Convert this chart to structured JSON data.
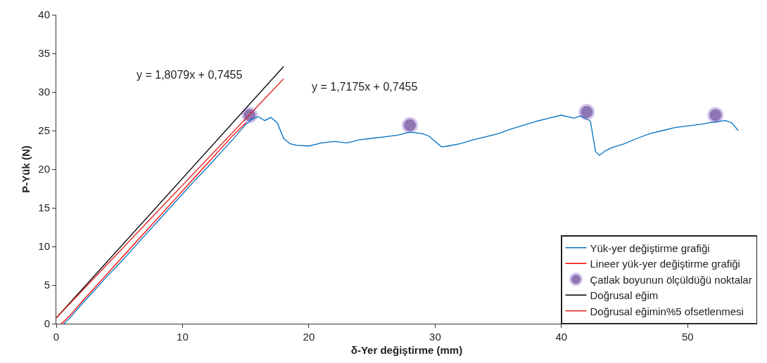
{
  "chart_data": {
    "type": "line",
    "xlabel": "δ-Yer değiştirme (mm)",
    "ylabel": "P-Yük (N)",
    "xlim": [
      0,
      55.5
    ],
    "xticks": [
      0,
      10,
      20,
      30,
      40,
      50
    ],
    "ylim": [
      0,
      40
    ],
    "yticks": [
      0,
      5,
      10,
      15,
      20,
      25,
      30,
      35,
      40
    ],
    "grid": false,
    "legend": "bottom right",
    "series": [
      {
        "name": "Yük-yer değiştirme grafiği",
        "color": "#0070c0",
        "x": [
          0.6,
          1,
          2,
          3,
          4,
          5,
          6,
          7,
          8,
          9,
          10,
          11,
          12,
          13,
          14,
          15,
          15.5,
          16,
          16.5,
          17,
          17.5,
          18,
          18.5,
          19,
          20,
          21,
          22,
          23,
          24,
          25,
          26,
          27,
          28,
          29,
          29.5,
          30,
          30.5,
          31,
          32,
          33,
          34,
          35,
          36,
          37,
          38,
          39,
          40,
          41,
          41.5,
          42,
          42.3,
          42.7,
          43,
          43.5,
          44,
          45,
          46,
          47,
          48,
          49,
          50,
          51,
          52,
          53,
          53.5,
          54
        ],
        "values": [
          0,
          0.6,
          2.5,
          4.3,
          6.1,
          7.8,
          9.6,
          11.4,
          13.2,
          15,
          16.8,
          18.6,
          20.3,
          22.1,
          23.9,
          25.8,
          26.5,
          26.8,
          26.3,
          26.7,
          26,
          24,
          23.3,
          23.1,
          23,
          23.4,
          23.6,
          23.4,
          23.8,
          24,
          24.2,
          24.4,
          24.8,
          24.6,
          24.3,
          23.6,
          22.9,
          23,
          23.3,
          23.8,
          24.2,
          24.6,
          25.2,
          25.7,
          26.2,
          26.6,
          27,
          26.6,
          26.9,
          26.5,
          26.2,
          22.3,
          21.8,
          22.4,
          22.8,
          23.3,
          24,
          24.6,
          25,
          25.4,
          25.6,
          25.8,
          26.1,
          26.3,
          26,
          25
        ]
      },
      {
        "name": "Lineer yük-yer değiştirme grafiği",
        "color": "#ff0000",
        "x": [
          0.4,
          1,
          2,
          3,
          4,
          5,
          6,
          7,
          8,
          9,
          10,
          11,
          12,
          13,
          14,
          15
        ],
        "values": [
          0,
          0.9,
          2.8,
          4.6,
          6.4,
          8.2,
          10,
          11.8,
          13.6,
          15.4,
          17.2,
          19,
          20.8,
          22.6,
          24.4,
          26
        ]
      },
      {
        "name": "Çatlak boyunun ölçüldüğü noktalar",
        "type": "scatter",
        "marker": "circle",
        "color": "#7b5ea7",
        "x": [
          15.3,
          28,
          42,
          52.2
        ],
        "values": [
          27,
          25.7,
          27.4,
          27
        ]
      },
      {
        "name": "Doğrusal eğim",
        "color": "#000000",
        "x": [
          0,
          18
        ],
        "values": [
          0.75,
          33.3
        ]
      },
      {
        "name": "Doğrusal eğimin%5 ofsetlenmesi",
        "color": "#e02020",
        "x": [
          0,
          18
        ],
        "values": [
          0.75,
          31.7
        ]
      }
    ],
    "annotations": [
      "y = 1,8079x + 0,7455",
      "y = 1,7175x + 0,7455"
    ]
  }
}
